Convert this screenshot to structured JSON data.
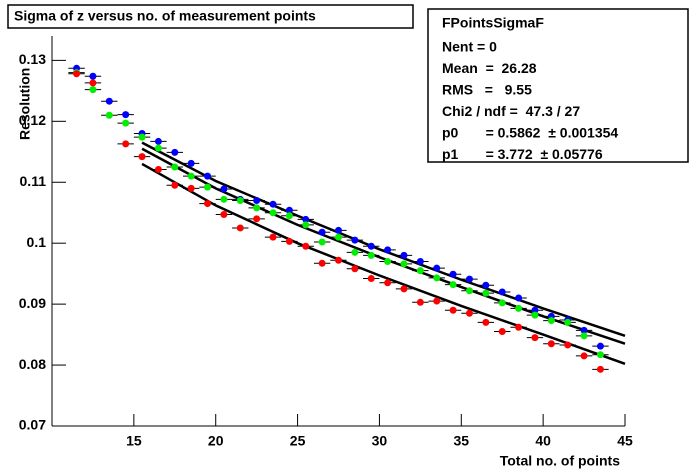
{
  "chart_data": {
    "type": "scatter",
    "title": "Sigma of z versus no. of measurement points",
    "x_label": "Total no. of points",
    "y_label": "Resolution",
    "xlim": [
      10,
      45
    ],
    "ylim": [
      0.07,
      0.134
    ],
    "xticks": [
      15,
      20,
      25,
      30,
      35,
      40,
      45
    ],
    "yticks": [
      0.07,
      0.08,
      0.09,
      0.1,
      0.11,
      0.12,
      0.13
    ],
    "xerr": 0.5,
    "x": [
      11.5,
      12.5,
      13.5,
      14.5,
      15.5,
      16.5,
      17.5,
      18.5,
      19.5,
      20.5,
      21.5,
      22.5,
      23.5,
      24.5,
      25.5,
      26.5,
      27.5,
      28.5,
      29.5,
      30.5,
      31.5,
      32.5,
      33.5,
      34.5,
      35.5,
      36.5,
      37.5,
      38.5,
      39.5,
      40.5,
      41.5,
      42.5,
      43.5
    ],
    "series": [
      {
        "color": "#0000ff",
        "values": [
          0.1287,
          0.1274,
          0.1233,
          0.1211,
          0.118,
          0.1167,
          0.1149,
          0.1131,
          0.111,
          0.1089,
          0.1072,
          0.107,
          0.1064,
          0.1054,
          0.1039,
          0.1018,
          0.1021,
          0.1005,
          0.0995,
          0.0989,
          0.098,
          0.097,
          0.0959,
          0.0949,
          0.0941,
          0.0931,
          0.092,
          0.091,
          0.089,
          0.088,
          0.0874,
          0.0857,
          0.0831
        ]
      },
      {
        "color": "#00ee00",
        "values": [
          0.128,
          0.1252,
          0.121,
          0.1197,
          0.1174,
          0.1156,
          0.1125,
          0.111,
          0.1092,
          0.1072,
          0.107,
          0.1058,
          0.105,
          0.1045,
          0.103,
          0.1002,
          0.101,
          0.0985,
          0.098,
          0.097,
          0.0966,
          0.0955,
          0.0943,
          0.0932,
          0.0922,
          0.0918,
          0.0902,
          0.0893,
          0.0882,
          0.0873,
          0.087,
          0.0848,
          0.0817
        ]
      },
      {
        "color": "#ff0000",
        "values": [
          0.1278,
          0.1263,
          null,
          0.1163,
          0.1142,
          0.1121,
          0.1095,
          0.109,
          0.1065,
          0.1047,
          0.1025,
          0.104,
          0.101,
          0.1003,
          0.0995,
          0.0967,
          0.0972,
          0.0958,
          0.0942,
          0.0935,
          0.0925,
          0.0903,
          0.0905,
          0.089,
          0.0885,
          0.087,
          0.0855,
          0.0862,
          0.0845,
          0.0835,
          0.0833,
          0.0815,
          0.0793
        ]
      }
    ],
    "fit_x": [
      15.5,
      20,
      25,
      30,
      35,
      40,
      45
    ],
    "fits": [
      {
        "color": "#000000",
        "values": [
          0.1165,
          0.1102,
          0.1045,
          0.099,
          0.094,
          0.0893,
          0.0848
        ]
      },
      {
        "color": "#000000",
        "values": [
          0.1155,
          0.109,
          0.103,
          0.0977,
          0.0928,
          0.088,
          0.0835
        ]
      },
      {
        "color": "#000000",
        "values": [
          0.113,
          0.1062,
          0.1,
          0.0947,
          0.0897,
          0.085,
          0.0802
        ]
      }
    ],
    "stats": {
      "title": "FPointsSigmaF",
      "rows": [
        "Nent = 0",
        "Mean  =  26.28",
        "RMS   =   9.55",
        "Chi2 / ndf =  47.3 / 27",
        "p0       = 0.5862  ± 0.001354",
        "p1       = 3.772  ± 0.05776"
      ]
    }
  }
}
